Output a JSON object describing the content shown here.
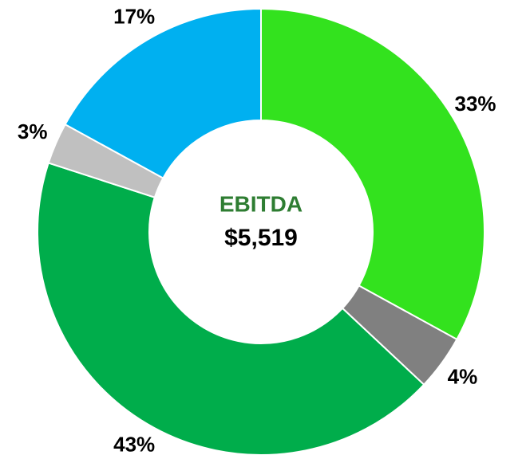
{
  "chart_data": {
    "type": "donut",
    "center_title": "EBITDA",
    "center_value": "$5,519",
    "values": [
      33,
      4,
      43,
      3,
      17
    ],
    "value_labels": [
      "33%",
      "4%",
      "43%",
      "3%",
      "17%"
    ],
    "colors": [
      "#33e21e",
      "#808080",
      "#00ad4b",
      "#c0c0c0",
      "#00b0f0"
    ],
    "center_title_color": "#2e7d32"
  }
}
